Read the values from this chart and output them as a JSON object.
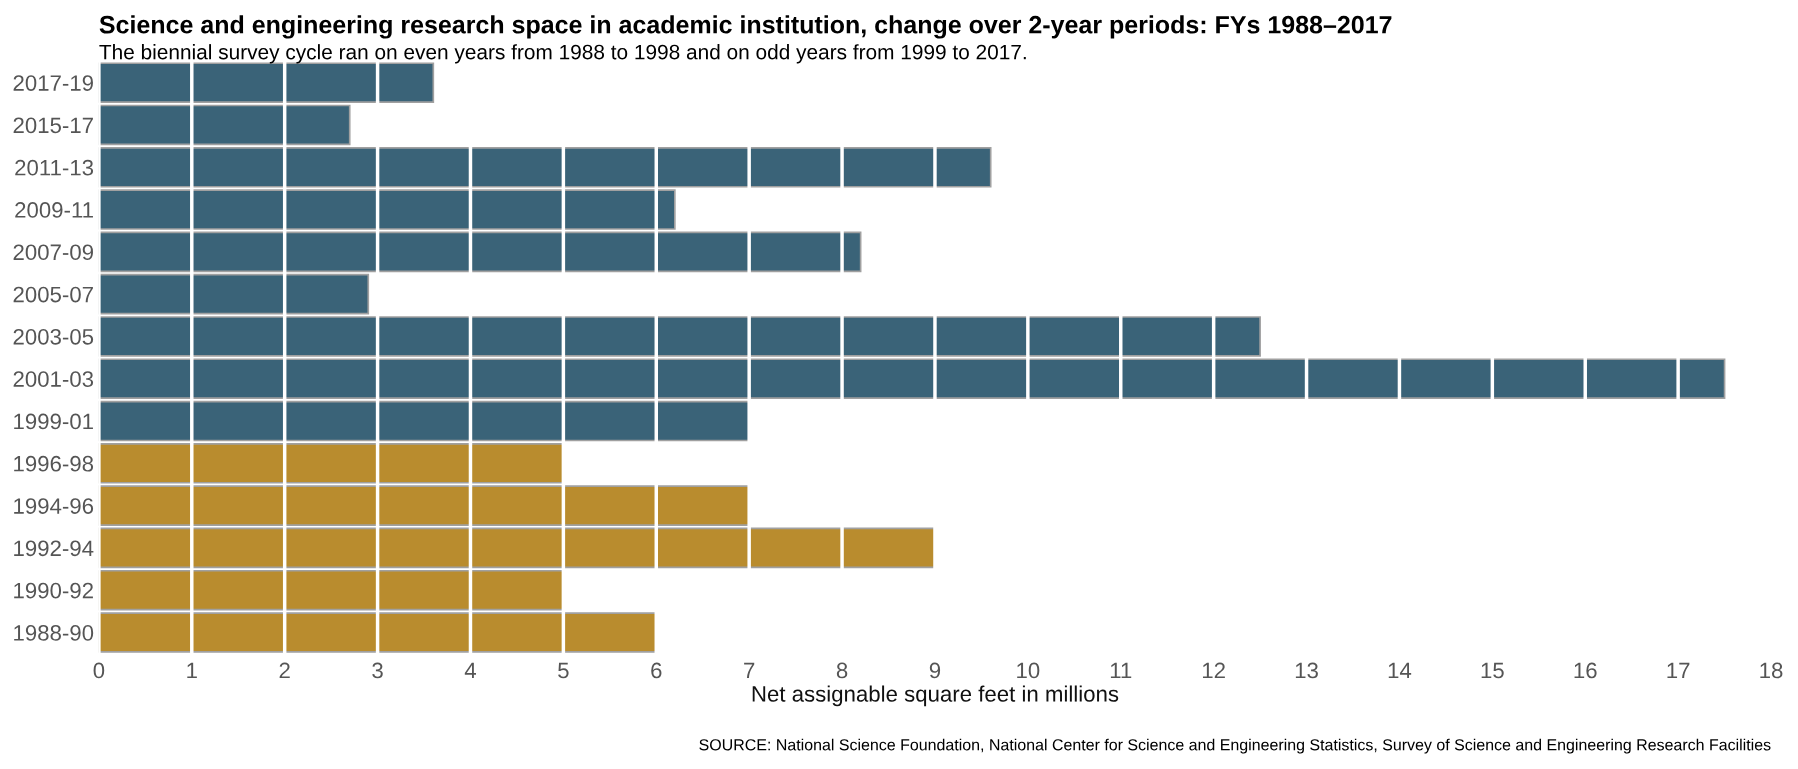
{
  "chart_data": {
    "type": "bar",
    "orientation": "horizontal",
    "title": "Science and engineering research space in academic institution, change over 2-year periods: FYs 1988–2017",
    "subtitle": "The biennial survey cycle ran on even years from 1988 to 1998 and on odd years from 1999 to 2017.",
    "xlabel": "Net assignable square feet in millions",
    "annotations": [
      "SOURCE: National Science Foundation, National Center for Science and Engineering Statistics, Survey of Science and Engineering Research Facilities"
    ],
    "categories": [
      "2017-19",
      "2015-17",
      "2011-13",
      "2009-11",
      "2007-09",
      "2005-07",
      "2003-05",
      "2001-03",
      "1999-01",
      "1996-98",
      "1994-96",
      "1992-94",
      "1990-92",
      "1988-90"
    ],
    "values": [
      3.6,
      2.7,
      9.6,
      6.2,
      8.2,
      2.9,
      12.5,
      17.5,
      7,
      5,
      7,
      9,
      5,
      6
    ],
    "colors": [
      "#3a6378",
      "#3a6378",
      "#3a6378",
      "#3a6378",
      "#3a6378",
      "#3a6378",
      "#3a6378",
      "#3a6378",
      "#3a6378",
      "#b98c2e",
      "#b98c2e",
      "#b98c2e",
      "#b98c2e",
      "#b98c2e"
    ],
    "xlim": [
      0,
      18
    ],
    "xticks": [
      0,
      1,
      2,
      3,
      4,
      5,
      6,
      7,
      8,
      9,
      10,
      11,
      12,
      13,
      14,
      15,
      16,
      17,
      18
    ],
    "grid": "x"
  }
}
